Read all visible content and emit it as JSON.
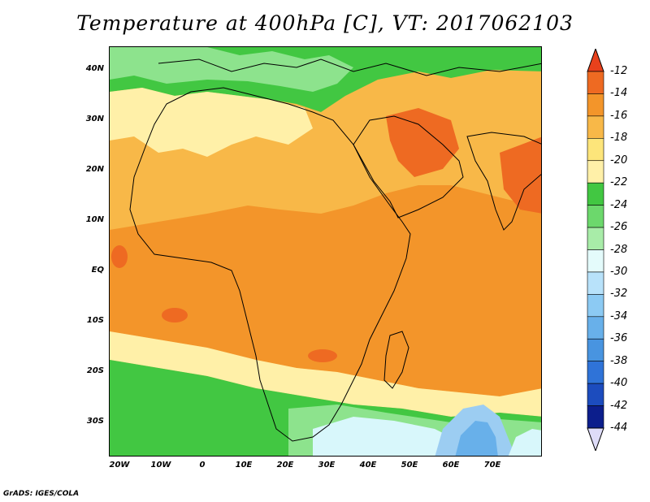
{
  "title": "Temperature at 400hPa [C], VT: 2017062103",
  "credit": "GrADS: IGES/COLA",
  "map": {
    "projection": "lat-lon",
    "lon_range_deg": [
      -25,
      80
    ],
    "lat_range_deg": [
      -38,
      46
    ],
    "lat_ticks": [
      "40N",
      "30N",
      "20N",
      "10N",
      "EQ",
      "10S",
      "20S",
      "30S"
    ],
    "lon_ticks": [
      "20W",
      "10W",
      "0",
      "10E",
      "20E",
      "30E",
      "40E",
      "50E",
      "60E",
      "70E"
    ],
    "field_colors": {
      "green_north": "#42c742",
      "light_green": "#8de38d",
      "pale_yellow": "#fff0a8",
      "orange_light": "#f8b848",
      "orange": "#f3952a",
      "dark_orange": "#ee6a22",
      "pale_cyan": "#d8f7fb",
      "light_blue": "#9ccdf2",
      "mid_blue": "#68b0ea"
    }
  },
  "colorbar": {
    "labels": [
      "-12",
      "-14",
      "-16",
      "-18",
      "-20",
      "-22",
      "-24",
      "-26",
      "-28",
      "-30",
      "-32",
      "-34",
      "-36",
      "-38",
      "-40",
      "-42",
      "-44"
    ],
    "colors": [
      "#e8411c",
      "#ee6a22",
      "#f3952a",
      "#f8b848",
      "#fde57a",
      "#fff0a8",
      "#42c742",
      "#6cd86c",
      "#a8eca8",
      "#e4fbfb",
      "#b8e2fa",
      "#8ccaf3",
      "#68b0ea",
      "#4894e0",
      "#2f73d8",
      "#1c4cbe",
      "#0c1e8c",
      "#dedcf8"
    ]
  }
}
